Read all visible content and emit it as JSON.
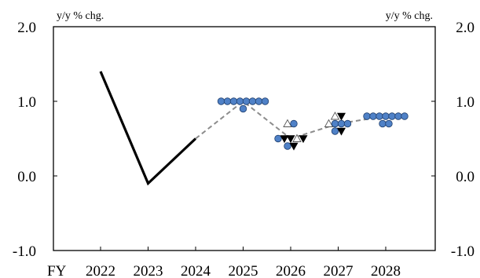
{
  "chart_data": {
    "type": "line",
    "x_prefix": "FY",
    "categories": [
      "2022",
      "2023",
      "2024",
      "2025",
      "2026",
      "2027",
      "2028"
    ],
    "ylim": [
      -1.0,
      2.0
    ],
    "y_ticks": [
      "-1.0",
      "0.0",
      "1.0",
      "2.0"
    ],
    "ylabel_left": "y/y % chg.",
    "ylabel_right": "y/y % chg.",
    "grid": false,
    "actual": {
      "x": [
        "2022",
        "2023",
        "2024"
      ],
      "y": [
        1.4,
        -0.1,
        0.5
      ],
      "color": "#000000"
    },
    "median": {
      "x": [
        "2024",
        "2025",
        "2026",
        "2027",
        "2028"
      ],
      "y": [
        0.5,
        1.0,
        0.5,
        0.7,
        0.8
      ],
      "color": "#8c8c8c"
    },
    "forecasts": {
      "circle_color": "#4f81c7",
      "items": [
        {
          "year": "2025",
          "marker": "circle",
          "value": 1.0
        },
        {
          "year": "2025",
          "marker": "circle",
          "value": 1.0
        },
        {
          "year": "2025",
          "marker": "circle",
          "value": 1.0
        },
        {
          "year": "2025",
          "marker": "circle",
          "value": 1.0
        },
        {
          "year": "2025",
          "marker": "circle",
          "value": 1.0
        },
        {
          "year": "2025",
          "marker": "circle",
          "value": 1.0
        },
        {
          "year": "2025",
          "marker": "circle",
          "value": 1.0
        },
        {
          "year": "2025",
          "marker": "circle",
          "value": 1.0
        },
        {
          "year": "2025",
          "marker": "circle",
          "value": 0.9
        },
        {
          "year": "2026",
          "marker": "triangle-up",
          "value": 0.7
        },
        {
          "year": "2026",
          "marker": "circle",
          "value": 0.7
        },
        {
          "year": "2026",
          "marker": "circle",
          "value": 0.5
        },
        {
          "year": "2026",
          "marker": "triangle-down",
          "value": 0.5
        },
        {
          "year": "2026",
          "marker": "triangle-down",
          "value": 0.5
        },
        {
          "year": "2026",
          "marker": "triangle-up",
          "value": 0.5
        },
        {
          "year": "2026",
          "marker": "triangle-down",
          "value": 0.5
        },
        {
          "year": "2026",
          "marker": "circle",
          "value": 0.4
        },
        {
          "year": "2026",
          "marker": "triangle-down",
          "value": 0.4
        },
        {
          "year": "2027",
          "marker": "triangle-up",
          "value": 0.8
        },
        {
          "year": "2027",
          "marker": "triangle-down",
          "value": 0.8
        },
        {
          "year": "2027",
          "marker": "triangle-up",
          "value": 0.7
        },
        {
          "year": "2027",
          "marker": "circle",
          "value": 0.7
        },
        {
          "year": "2027",
          "marker": "circle",
          "value": 0.7
        },
        {
          "year": "2027",
          "marker": "circle",
          "value": 0.7
        },
        {
          "year": "2027",
          "marker": "circle",
          "value": 0.6
        },
        {
          "year": "2027",
          "marker": "triangle-down",
          "value": 0.6
        },
        {
          "year": "2028",
          "marker": "circle",
          "value": 0.8
        },
        {
          "year": "2028",
          "marker": "circle",
          "value": 0.8
        },
        {
          "year": "2028",
          "marker": "circle",
          "value": 0.8
        },
        {
          "year": "2028",
          "marker": "circle",
          "value": 0.8
        },
        {
          "year": "2028",
          "marker": "circle",
          "value": 0.8
        },
        {
          "year": "2028",
          "marker": "circle",
          "value": 0.8
        },
        {
          "year": "2028",
          "marker": "circle",
          "value": 0.8
        },
        {
          "year": "2028",
          "marker": "circle",
          "value": 0.7
        },
        {
          "year": "2028",
          "marker": "circle",
          "value": 0.7
        }
      ]
    }
  }
}
